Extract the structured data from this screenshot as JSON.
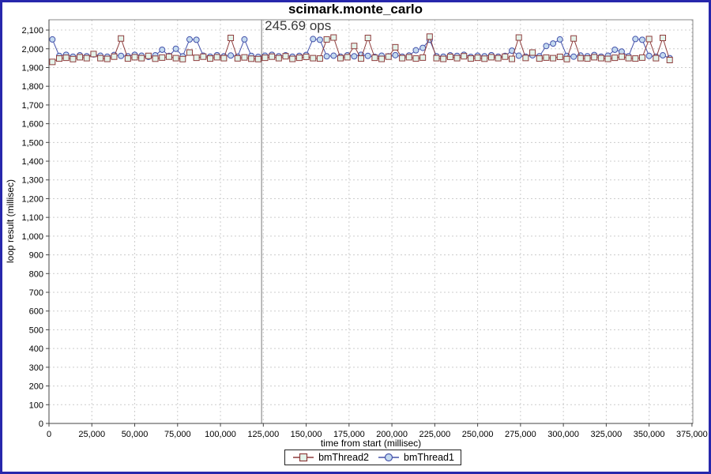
{
  "window": {
    "border_color": "#2727AC",
    "background": "#FFFFFF"
  },
  "chart_data": {
    "type": "line",
    "title": "scimark.monte_carlo",
    "annotation": {
      "text": "245.69 ops",
      "x": 124000
    },
    "marker_line_x": 124000,
    "xlabel": "time from start (millisec)",
    "ylabel": "loop result (millisec)",
    "xlim": [
      0,
      375500
    ],
    "ylim": [
      0,
      2155
    ],
    "xtick_step": 25000,
    "xtick_max": 375000,
    "ytick_step": 100,
    "ytick_max": 2100,
    "grid": "dashed",
    "grid_color": "#CCCCCC",
    "plot_border_color": "#888888",
    "axis_color": "#444444",
    "marker_line_color": "#777777",
    "legend_position": "bottom-center",
    "x_start": 2000,
    "x_step": 4000,
    "series": [
      {
        "name": "bmThread2",
        "marker": "square",
        "color": "#8E3C3C",
        "fill": "#E4F3EA",
        "values": [
          1930,
          1948,
          1952,
          1945,
          1955,
          1950,
          1972,
          1950,
          1946,
          1958,
          2055,
          1948,
          1955,
          1950,
          1962,
          1947,
          1953,
          1958,
          1950,
          1945,
          1980,
          1952,
          1958,
          1948,
          1955,
          1950,
          2058,
          1949,
          1954,
          1947,
          1945,
          1952,
          1958,
          1950,
          1960,
          1946,
          1952,
          1957,
          1950,
          1948,
          2050,
          2060,
          1950,
          1955,
          2015,
          1948,
          2058,
          1952,
          1946,
          1958,
          2008,
          1950,
          1955,
          1948,
          1953,
          2065,
          1950,
          1946,
          1957,
          1950,
          1960,
          1948,
          1952,
          1947,
          1955,
          1950,
          1958,
          1946,
          2060,
          1951,
          1980,
          1948,
          1953,
          1950,
          1957,
          1945,
          2055,
          1950,
          1948,
          1955,
          1950,
          1946,
          1952,
          1958,
          1950,
          1948,
          1953,
          2052,
          1950,
          2058,
          1940
        ]
      },
      {
        "name": "bmThread1",
        "marker": "circle",
        "color": "#4553AB",
        "fill": "#C4DAEF",
        "values": [
          2050,
          1962,
          1968,
          1958,
          1965,
          1960,
          1970,
          1963,
          1958,
          1967,
          1962,
          1960,
          1968,
          1963,
          1957,
          1965,
          1995,
          1962,
          2000,
          1960,
          2050,
          2048,
          1963,
          1958,
          1966,
          1960,
          1964,
          1958,
          2050,
          1962,
          1957,
          1963,
          1968,
          1960,
          1965,
          1958,
          1962,
          1967,
          2052,
          2048,
          1960,
          1963,
          1958,
          1965,
          1960,
          1968,
          1962,
          1957,
          1963,
          1960,
          1966,
          1958,
          1964,
          1992,
          2005,
          2048,
          1960,
          1958,
          1965,
          1962,
          1968,
          1957,
          1963,
          1960,
          1966,
          1958,
          1962,
          1990,
          1963,
          1958,
          1965,
          1960,
          2015,
          2028,
          2050,
          1962,
          1958,
          1964,
          1960,
          1967,
          1958,
          1963,
          1995,
          1985,
          1960,
          2052,
          2048,
          1962,
          1958,
          1965,
          1950
        ]
      }
    ]
  }
}
